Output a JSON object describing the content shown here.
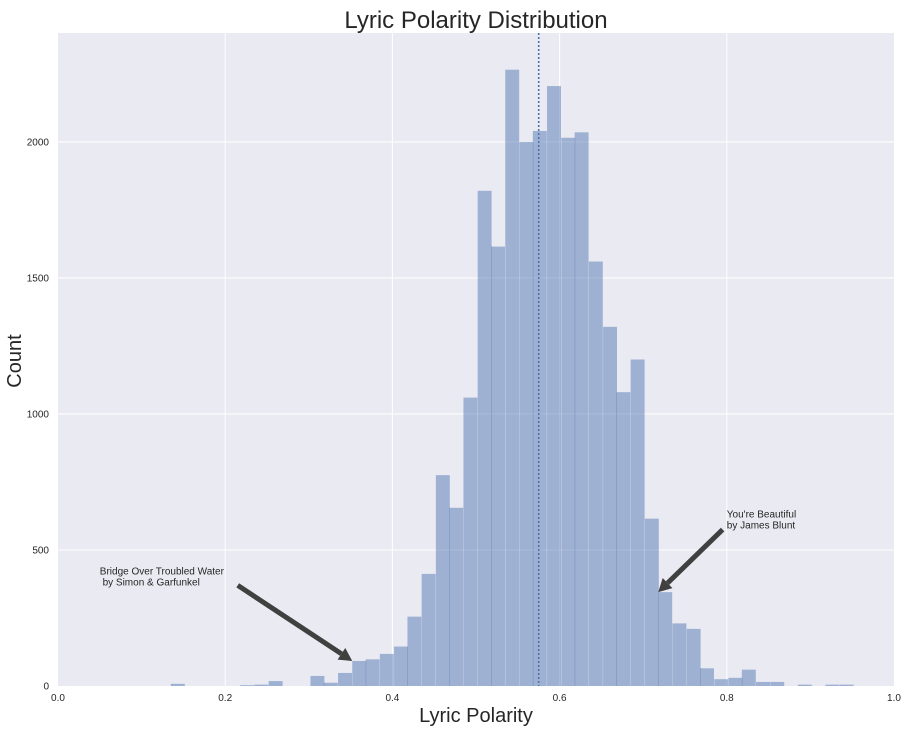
{
  "chart_data": {
    "type": "bar",
    "title": "Lyric Polarity Distribution",
    "xlabel": "Lyric Polarity",
    "ylabel": "Count",
    "xlim": [
      0.0,
      1.0
    ],
    "ylim": [
      0,
      2400
    ],
    "grid": true,
    "bin_width": 0.01667,
    "bin_left_edges": [
      0.135,
      0.218,
      0.235,
      0.252,
      0.302,
      0.318,
      0.335,
      0.352,
      0.368,
      0.385,
      0.402,
      0.418,
      0.435,
      0.452,
      0.468,
      0.485,
      0.502,
      0.518,
      0.535,
      0.552,
      0.568,
      0.585,
      0.602,
      0.618,
      0.635,
      0.652,
      0.668,
      0.685,
      0.702,
      0.718,
      0.735,
      0.752,
      0.768,
      0.785,
      0.802,
      0.818,
      0.835,
      0.852,
      0.885,
      0.918,
      0.935
    ],
    "counts": [
      8,
      3,
      5,
      18,
      37,
      12,
      48,
      92,
      98,
      118,
      145,
      255,
      412,
      775,
      655,
      1060,
      1820,
      1615,
      2265,
      2000,
      2040,
      2205,
      2015,
      2035,
      1560,
      1320,
      1080,
      1200,
      615,
      345,
      230,
      210,
      65,
      25,
      30,
      60,
      15,
      15,
      5,
      5,
      5
    ],
    "bar_color": "#4c72b0",
    "mean_line": {
      "x": 0.575,
      "color": "#4c72b0",
      "style": "dotted"
    },
    "xticks": [
      {
        "value": 0.0,
        "label": "0.0"
      },
      {
        "value": 0.2,
        "label": "0.2"
      },
      {
        "value": 0.4,
        "label": "0.4"
      },
      {
        "value": 0.6,
        "label": "0.6"
      },
      {
        "value": 0.8,
        "label": "0.8"
      },
      {
        "value": 1.0,
        "label": "1.0"
      }
    ],
    "yticks": [
      {
        "value": 0,
        "label": "0"
      },
      {
        "value": 500,
        "label": "500"
      },
      {
        "value": 1000,
        "label": "1000"
      },
      {
        "value": 1500,
        "label": "1500"
      },
      {
        "value": 2000,
        "label": "2000"
      }
    ],
    "annotations": [
      {
        "lines": [
          "Bridge Over Troubled Water",
          " by Simon & Garfunkel"
        ],
        "text_at": [
          0.05,
          410
        ],
        "arrow_from": [
          0.215,
          370
        ],
        "arrow_to": [
          0.352,
          92
        ]
      },
      {
        "lines": [
          "You're Beautiful",
          "by James Blunt"
        ],
        "text_at": [
          0.8,
          620
        ],
        "arrow_from": [
          0.795,
          575
        ],
        "arrow_to": [
          0.718,
          345
        ]
      }
    ],
    "colors": {
      "plot_bg": "#eaeaf2",
      "grid": "#ffffff",
      "arrow": "#404040"
    }
  }
}
